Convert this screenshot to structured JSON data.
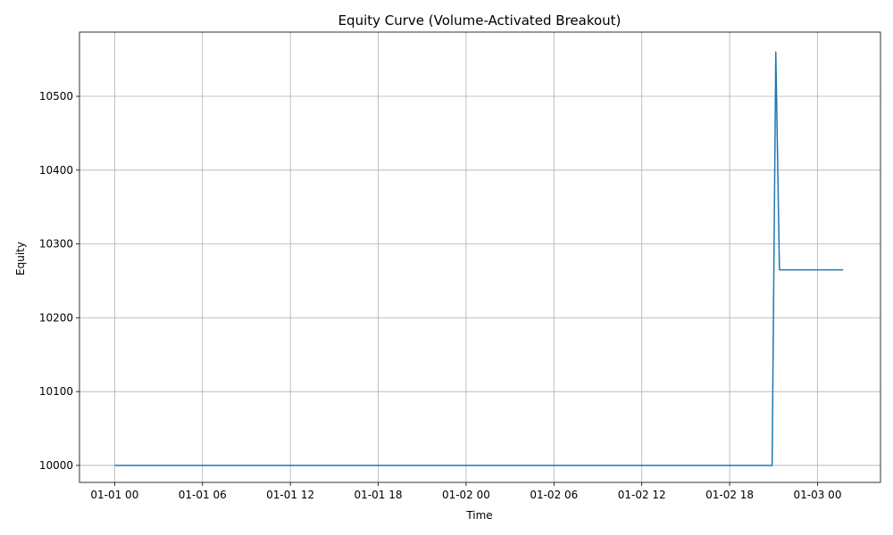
{
  "chart_data": {
    "type": "line",
    "title": "Equity Curve (Volume-Activated Breakout)",
    "xlabel": "Time",
    "ylabel": "Equity",
    "x_ticks": [
      "01-01 00",
      "01-01 06",
      "01-01 12",
      "01-01 18",
      "01-02 00",
      "01-02 06",
      "01-02 12",
      "01-02 18",
      "01-03 00"
    ],
    "y_ticks": [
      10000,
      10100,
      10200,
      10300,
      10400,
      10500
    ],
    "xlim_hours": [
      -2.4,
      52.3
    ],
    "ylim": [
      9977,
      10587
    ],
    "grid": true,
    "legend": "none",
    "series_color": "#1f77b4",
    "series": [
      {
        "x_hours": [
          0,
          44.9,
          45.15,
          45.4,
          49.75
        ],
        "values": [
          10000,
          10000,
          10560,
          10265,
          10265
        ]
      }
    ]
  }
}
